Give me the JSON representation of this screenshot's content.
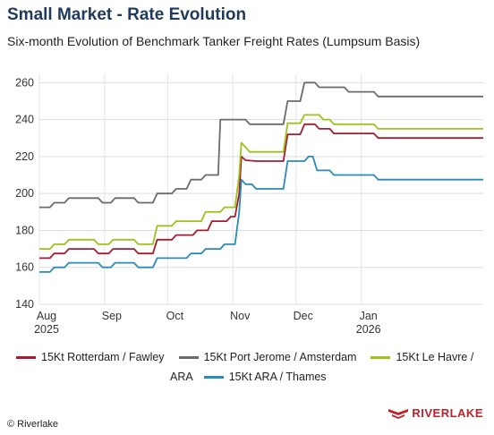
{
  "header": {
    "title": "Small Market - Rate Evolution",
    "subtitle": "Six-month Evolution of Benchmark Tanker Freight Rates (Lumpsum Basis)"
  },
  "footer": {
    "copyright": "© Riverlake",
    "logo_text": "RIVERLAKE",
    "logo_color": "#c0202a"
  },
  "chart_data": {
    "type": "line",
    "title": "Small Market - Rate Evolution",
    "subtitle": "Six-month Evolution of Benchmark Tanker Freight Rates (Lumpsum Basis)",
    "xlabel": "",
    "ylabel": "",
    "ylim": [
      140,
      265
    ],
    "xlim": [
      "2025-08-01",
      "2026-02-28"
    ],
    "y_ticks": [
      140,
      160,
      180,
      200,
      220,
      240,
      260
    ],
    "x_ticks": [
      {
        "date": "2025-08-01",
        "label": "Aug",
        "sublabel": "2025"
      },
      {
        "date": "2025-09-01",
        "label": "Sep",
        "sublabel": ""
      },
      {
        "date": "2025-10-01",
        "label": "Oct",
        "sublabel": ""
      },
      {
        "date": "2025-11-01",
        "label": "Nov",
        "sublabel": ""
      },
      {
        "date": "2025-12-01",
        "label": "Dec",
        "sublabel": ""
      },
      {
        "date": "2026-01-01",
        "label": "Jan",
        "sublabel": "2026"
      }
    ],
    "grid": true,
    "legend_position": "bottom",
    "series": [
      {
        "name": "15Kt Rotterdam / Fawley",
        "color": "#a51c30",
        "points": [
          [
            "2025-08-01",
            165
          ],
          [
            "2025-08-06",
            165
          ],
          [
            "2025-08-08",
            167.5
          ],
          [
            "2025-08-13",
            167.5
          ],
          [
            "2025-08-15",
            170
          ],
          [
            "2025-08-27",
            170
          ],
          [
            "2025-08-29",
            167.5
          ],
          [
            "2025-09-03",
            167.5
          ],
          [
            "2025-09-05",
            170
          ],
          [
            "2025-09-15",
            170
          ],
          [
            "2025-09-17",
            167.5
          ],
          [
            "2025-09-24",
            167.5
          ],
          [
            "2025-09-26",
            175
          ],
          [
            "2025-10-03",
            175
          ],
          [
            "2025-10-05",
            177.5
          ],
          [
            "2025-10-13",
            177.5
          ],
          [
            "2025-10-15",
            180
          ],
          [
            "2025-10-20",
            180
          ],
          [
            "2025-10-22",
            185
          ],
          [
            "2025-10-29",
            185
          ],
          [
            "2025-10-31",
            187.5
          ],
          [
            "2025-11-02",
            187.5
          ],
          [
            "2025-11-04",
            200
          ],
          [
            "2025-11-05",
            220
          ],
          [
            "2025-11-07",
            218
          ],
          [
            "2025-11-12",
            217.5
          ],
          [
            "2025-11-25",
            217.5
          ],
          [
            "2025-11-27",
            232
          ],
          [
            "2025-12-03",
            232
          ],
          [
            "2025-12-05",
            237.5
          ],
          [
            "2025-12-10",
            237.5
          ],
          [
            "2025-12-12",
            235
          ],
          [
            "2025-12-17",
            235
          ],
          [
            "2025-12-19",
            232.5
          ],
          [
            "2026-01-07",
            232.5
          ],
          [
            "2026-01-09",
            230
          ],
          [
            "2026-02-28",
            230
          ]
        ]
      },
      {
        "name": "15Kt Port Jerome / Amsterdam",
        "color": "#6b6b6b",
        "points": [
          [
            "2025-08-01",
            192.5
          ],
          [
            "2025-08-06",
            192.5
          ],
          [
            "2025-08-08",
            195
          ],
          [
            "2025-08-13",
            195
          ],
          [
            "2025-08-15",
            197.5
          ],
          [
            "2025-08-29",
            197.5
          ],
          [
            "2025-08-31",
            195
          ],
          [
            "2025-09-04",
            195
          ],
          [
            "2025-09-06",
            197.5
          ],
          [
            "2025-09-15",
            197.5
          ],
          [
            "2025-09-17",
            195
          ],
          [
            "2025-09-24",
            195
          ],
          [
            "2025-09-26",
            200
          ],
          [
            "2025-10-03",
            200
          ],
          [
            "2025-10-05",
            202.5
          ],
          [
            "2025-10-10",
            202.5
          ],
          [
            "2025-10-12",
            207.5
          ],
          [
            "2025-10-17",
            207.5
          ],
          [
            "2025-10-19",
            210
          ],
          [
            "2025-10-25",
            210
          ],
          [
            "2025-10-26",
            240
          ],
          [
            "2025-11-07",
            240
          ],
          [
            "2025-11-09",
            237.5
          ],
          [
            "2025-11-25",
            237.5
          ],
          [
            "2025-11-27",
            250
          ],
          [
            "2025-12-03",
            250
          ],
          [
            "2025-12-05",
            260
          ],
          [
            "2025-12-10",
            260
          ],
          [
            "2025-12-12",
            257.5
          ],
          [
            "2025-12-24",
            257.5
          ],
          [
            "2025-12-26",
            255
          ],
          [
            "2026-01-07",
            255
          ],
          [
            "2026-01-09",
            252.5
          ],
          [
            "2026-02-28",
            252.5
          ]
        ]
      },
      {
        "name": "15Kt Le Havre / ARA",
        "color": "#9dc31a",
        "points": [
          [
            "2025-08-01",
            170
          ],
          [
            "2025-08-06",
            170
          ],
          [
            "2025-08-08",
            172.5
          ],
          [
            "2025-08-13",
            172.5
          ],
          [
            "2025-08-15",
            175
          ],
          [
            "2025-08-27",
            175
          ],
          [
            "2025-08-29",
            172.5
          ],
          [
            "2025-09-03",
            172.5
          ],
          [
            "2025-09-05",
            175
          ],
          [
            "2025-09-15",
            175
          ],
          [
            "2025-09-17",
            172.5
          ],
          [
            "2025-09-24",
            172.5
          ],
          [
            "2025-09-26",
            182.5
          ],
          [
            "2025-10-03",
            182.5
          ],
          [
            "2025-10-05",
            185
          ],
          [
            "2025-10-17",
            185
          ],
          [
            "2025-10-19",
            190
          ],
          [
            "2025-10-26",
            190
          ],
          [
            "2025-10-28",
            192.5
          ],
          [
            "2025-11-02",
            192.5
          ],
          [
            "2025-11-04",
            210
          ],
          [
            "2025-11-05",
            227.5
          ],
          [
            "2025-11-07",
            225
          ],
          [
            "2025-11-09",
            222.5
          ],
          [
            "2025-11-25",
            222.5
          ],
          [
            "2025-11-27",
            238
          ],
          [
            "2025-12-03",
            238
          ],
          [
            "2025-12-05",
            242.5
          ],
          [
            "2025-12-12",
            242.5
          ],
          [
            "2025-12-14",
            240
          ],
          [
            "2025-12-17",
            240
          ],
          [
            "2025-12-19",
            237.5
          ],
          [
            "2026-01-07",
            237.5
          ],
          [
            "2026-01-09",
            235
          ],
          [
            "2026-02-28",
            235
          ]
        ]
      },
      {
        "name": "15Kt ARA / Thames",
        "color": "#2a8ab8",
        "points": [
          [
            "2025-08-01",
            157.5
          ],
          [
            "2025-08-06",
            157.5
          ],
          [
            "2025-08-08",
            160
          ],
          [
            "2025-08-13",
            160
          ],
          [
            "2025-08-15",
            162.5
          ],
          [
            "2025-08-29",
            162.5
          ],
          [
            "2025-08-31",
            160
          ],
          [
            "2025-09-04",
            160
          ],
          [
            "2025-09-06",
            162.5
          ],
          [
            "2025-09-15",
            162.5
          ],
          [
            "2025-09-17",
            160
          ],
          [
            "2025-09-24",
            160
          ],
          [
            "2025-09-26",
            165
          ],
          [
            "2025-10-10",
            165
          ],
          [
            "2025-10-12",
            167.5
          ],
          [
            "2025-10-17",
            167.5
          ],
          [
            "2025-10-19",
            170
          ],
          [
            "2025-10-26",
            170
          ],
          [
            "2025-10-28",
            172.5
          ],
          [
            "2025-11-02",
            172.5
          ],
          [
            "2025-11-04",
            190
          ],
          [
            "2025-11-05",
            207.5
          ],
          [
            "2025-11-07",
            205
          ],
          [
            "2025-11-10",
            205
          ],
          [
            "2025-11-12",
            202.5
          ],
          [
            "2025-11-25",
            202.5
          ],
          [
            "2025-11-27",
            217.5
          ],
          [
            "2025-12-05",
            217.5
          ],
          [
            "2025-12-07",
            220
          ],
          [
            "2025-12-09",
            220
          ],
          [
            "2025-12-11",
            212.5
          ],
          [
            "2025-12-17",
            212.5
          ],
          [
            "2025-12-19",
            210
          ],
          [
            "2026-01-07",
            210
          ],
          [
            "2026-01-09",
            207.5
          ],
          [
            "2026-02-28",
            207.5
          ]
        ]
      }
    ]
  }
}
